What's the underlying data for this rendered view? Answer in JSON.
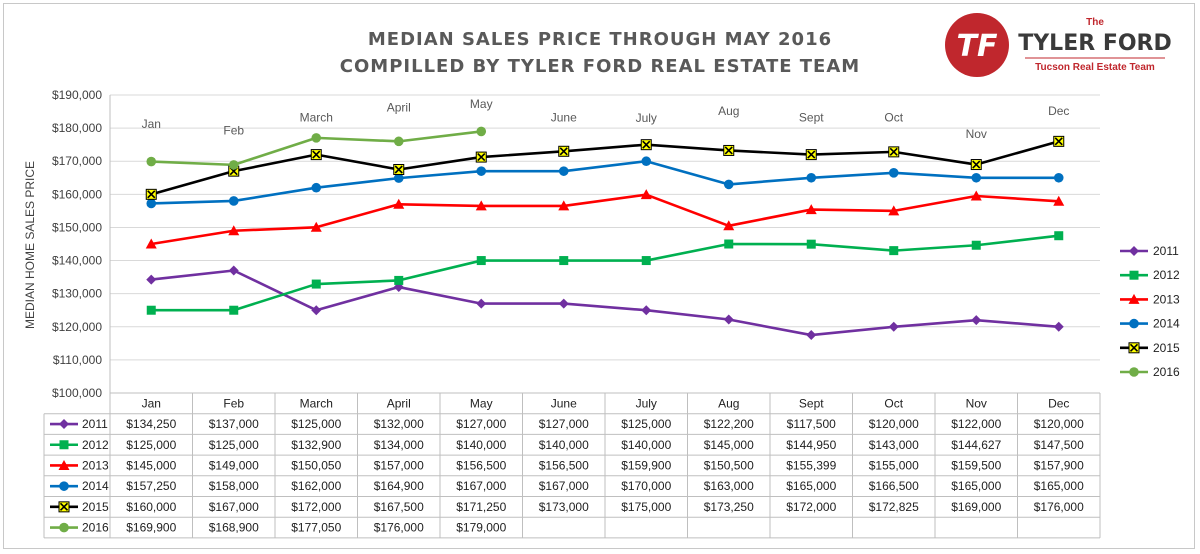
{
  "chart_data": {
    "type": "line",
    "title_line1": "MEDIAN SALES PRICE THROUGH MAY 2016",
    "title_line2": "COMPILLED BY TYLER FORD REAL ESTATE TEAM",
    "ylabel": "MEDIAN HOME SALES PRICE",
    "ylim": [
      100000,
      190000
    ],
    "ytick_step": 10000,
    "yticks": [
      "$100,000",
      "$110,000",
      "$120,000",
      "$130,000",
      "$140,000",
      "$150,000",
      "$160,000",
      "$170,000",
      "$180,000",
      "$190,000"
    ],
    "categories": [
      "Jan",
      "Feb",
      "March",
      "April",
      "May",
      "June",
      "July",
      "Aug",
      "Sept",
      "Oct",
      "Nov",
      "Dec"
    ],
    "month_annotations": [
      {
        "label": "Jan",
        "value": 180000
      },
      {
        "label": "Feb",
        "value": 178000
      },
      {
        "label": "March",
        "value": 182000
      },
      {
        "label": "April",
        "value": 185000
      },
      {
        "label": "May",
        "value": 186000
      },
      {
        "label": "June",
        "value": 182000
      },
      {
        "label": "July",
        "value": 181800
      },
      {
        "label": "Aug",
        "value": 184000
      },
      {
        "label": "Sept",
        "value": 182000
      },
      {
        "label": "Oct",
        "value": 182000
      },
      {
        "label": "Nov",
        "value": 177000
      },
      {
        "label": "Dec",
        "value": 184000
      }
    ],
    "legend_position": "right",
    "grid": true,
    "series": [
      {
        "name": "2011",
        "color": "#7030a0",
        "marker": "diamond",
        "values": [
          134250,
          137000,
          125000,
          132000,
          127000,
          127000,
          125000,
          122200,
          117500,
          120000,
          122000,
          120000
        ],
        "labels": [
          "$134,250",
          "$137,000",
          "$125,000",
          "$132,000",
          "$127,000",
          "$127,000",
          "$125,000",
          "$122,200",
          "$117,500",
          "$120,000",
          "$122,000",
          "$120,000"
        ]
      },
      {
        "name": "2012",
        "color": "#00b050",
        "marker": "square",
        "values": [
          125000,
          125000,
          132900,
          134000,
          140000,
          140000,
          140000,
          145000,
          144950,
          143000,
          144627,
          147500
        ],
        "labels": [
          "$125,000",
          "$125,000",
          "$132,900",
          "$134,000",
          "$140,000",
          "$140,000",
          "$140,000",
          "$145,000",
          "$144,950",
          "$143,000",
          "$144,627",
          "$147,500"
        ]
      },
      {
        "name": "2013",
        "color": "#ff0000",
        "marker": "triangle",
        "values": [
          145000,
          149000,
          150050,
          157000,
          156500,
          156500,
          159900,
          150500,
          155399,
          155000,
          159500,
          157900
        ],
        "labels": [
          "$145,000",
          "$149,000",
          "$150,050",
          "$157,000",
          "$156,500",
          "$156,500",
          "$159,900",
          "$150,500",
          "$155,399",
          "$155,000",
          "$159,500",
          "$157,900"
        ]
      },
      {
        "name": "2014",
        "color": "#0070c0",
        "marker": "circle",
        "values": [
          157250,
          158000,
          162000,
          164900,
          167000,
          167000,
          170000,
          163000,
          165000,
          166500,
          165000,
          165000
        ],
        "labels": [
          "$157,250",
          "$158,000",
          "$162,000",
          "$164,900",
          "$167,000",
          "$167,000",
          "$170,000",
          "$163,000",
          "$165,000",
          "$166,500",
          "$165,000",
          "$165,000"
        ]
      },
      {
        "name": "2015",
        "color": "#000000",
        "marker": "star",
        "values": [
          160000,
          167000,
          172000,
          167500,
          171250,
          173000,
          175000,
          173250,
          172000,
          172825,
          169000,
          176000
        ],
        "labels": [
          "$160,000",
          "$167,000",
          "$172,000",
          "$167,500",
          "$171,250",
          "$173,000",
          "$175,000",
          "$173,250",
          "$172,000",
          "$172,825",
          "$169,000",
          "$176,000"
        ]
      },
      {
        "name": "2016",
        "color": "#70ad47",
        "marker": "circle",
        "values": [
          169900,
          168900,
          177050,
          176000,
          179000,
          null,
          null,
          null,
          null,
          null,
          null,
          null
        ],
        "labels": [
          "$169,900",
          "$168,900",
          "$177,050",
          "$176,000",
          "$179,000",
          "",
          "",
          "",
          "",
          "",
          "",
          ""
        ]
      }
    ]
  },
  "logo": {
    "the": "The",
    "name": "TYLER FORD",
    "tagline": "Tucson Real Estate Team",
    "monogram": "TF",
    "primary_color": "#c0272d"
  }
}
